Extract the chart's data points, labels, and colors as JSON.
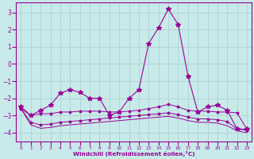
{
  "x": [
    0,
    1,
    2,
    3,
    4,
    5,
    6,
    7,
    8,
    9,
    10,
    11,
    12,
    13,
    14,
    15,
    16,
    17,
    18,
    19,
    20,
    21,
    22,
    23
  ],
  "main_line": [
    -2.5,
    -3.0,
    -2.7,
    -2.4,
    -1.7,
    -1.5,
    -1.65,
    -2.0,
    -2.0,
    -3.0,
    -2.8,
    -2.0,
    -1.5,
    1.2,
    2.1,
    3.2,
    2.3,
    -0.7,
    -2.8,
    -2.5,
    -2.4,
    -2.7,
    -3.8,
    -3.8
  ],
  "smooth1": [
    -2.6,
    -3.0,
    -2.9,
    -2.9,
    -2.8,
    -2.8,
    -2.75,
    -2.75,
    -2.75,
    -2.8,
    -2.8,
    -2.75,
    -2.7,
    -2.6,
    -2.5,
    -2.35,
    -2.5,
    -2.7,
    -2.75,
    -2.75,
    -2.8,
    -2.8,
    -2.85,
    -3.8
  ],
  "smooth2": [
    -2.6,
    -3.4,
    -3.55,
    -3.5,
    -3.4,
    -3.35,
    -3.3,
    -3.25,
    -3.2,
    -3.15,
    -3.1,
    -3.05,
    -3.0,
    -2.95,
    -2.9,
    -2.85,
    -2.95,
    -3.1,
    -3.2,
    -3.2,
    -3.25,
    -3.35,
    -3.8,
    -3.85
  ],
  "smooth3": [
    -2.6,
    -3.55,
    -3.75,
    -3.7,
    -3.6,
    -3.55,
    -3.5,
    -3.45,
    -3.4,
    -3.35,
    -3.3,
    -3.25,
    -3.2,
    -3.15,
    -3.1,
    -3.05,
    -3.15,
    -3.3,
    -3.4,
    -3.4,
    -3.45,
    -3.6,
    -3.9,
    -4.0
  ],
  "bg_color": "#c8eaea",
  "line_color": "#990099",
  "grid_color": "#b0d0d0",
  "ylabel_ticks": [
    3,
    2,
    1,
    0,
    -1,
    -2,
    -3,
    -4
  ],
  "ylim": [
    -4.5,
    3.6
  ],
  "xlim": [
    -0.5,
    23.5
  ],
  "xlabel": "Windchill (Refroidissement éolien,°C)",
  "marker": "*",
  "main_markersize": 4,
  "smooth_markersize": 2.5
}
